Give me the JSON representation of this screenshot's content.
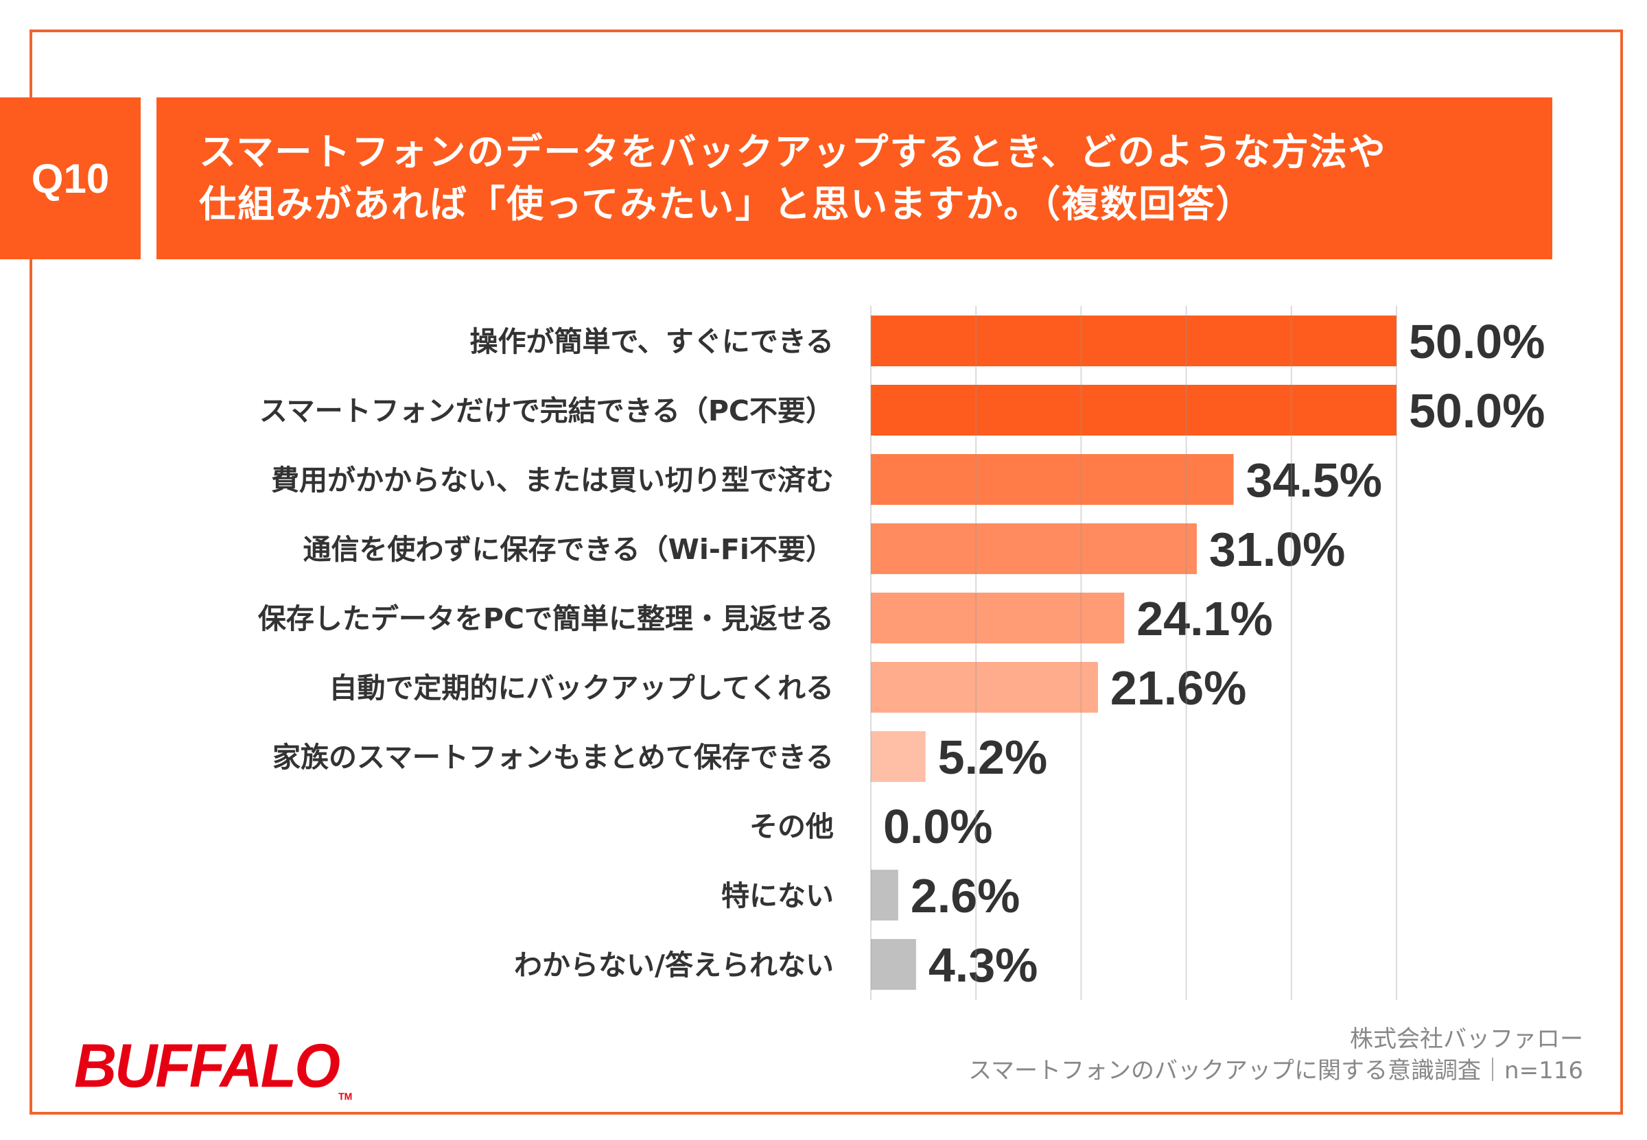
{
  "header": {
    "question_no": "Q10",
    "title_line1": "スマートフォンのデータをバックアップするとき、どのような方法や",
    "title_line2": "仕組みがあれば「使ってみたい」と思いますか。（複数回答）"
  },
  "chart_data": {
    "type": "bar",
    "orientation": "horizontal",
    "categories": [
      "操作が簡単で、すぐにできる",
      "スマートフォンだけで完結できる（PC不要）",
      "費用がかからない、または買い切り型で済む",
      "通信を使わずに保存できる（Wi-Fi不要）",
      "保存したデータをPCで簡単に整理・見返せる",
      "自動で定期的にバックアップしてくれる",
      "家族のスマートフォンもまとめて保存できる",
      "その他",
      "特にない",
      "わからない/答えられない"
    ],
    "values": [
      50.0,
      50.0,
      34.5,
      31.0,
      24.1,
      21.6,
      5.2,
      0.0,
      2.6,
      4.3
    ],
    "value_labels": [
      "50.0%",
      "50.0%",
      "34.5%",
      "31.0%",
      "24.1%",
      "21.6%",
      "5.2%",
      "0.0%",
      "2.6%",
      "4.3%"
    ],
    "colors": [
      "#fd5c1e",
      "#fd5c1e",
      "#ff7c48",
      "#ff8b5e",
      "#ff9b75",
      "#ffac8c",
      "#ffbfa6",
      "#ffbfa6",
      "#c0c0c0",
      "#c0c0c0"
    ],
    "unit": "%",
    "xlim": [
      0,
      50
    ],
    "grid": true,
    "grid_step": 10
  },
  "brand": {
    "logo": "BUFFALO",
    "color": "#e60012"
  },
  "footer": {
    "company": "株式会社バッファロー",
    "survey": "スマートフォンのバックアップに関する意識調査｜n=116"
  }
}
